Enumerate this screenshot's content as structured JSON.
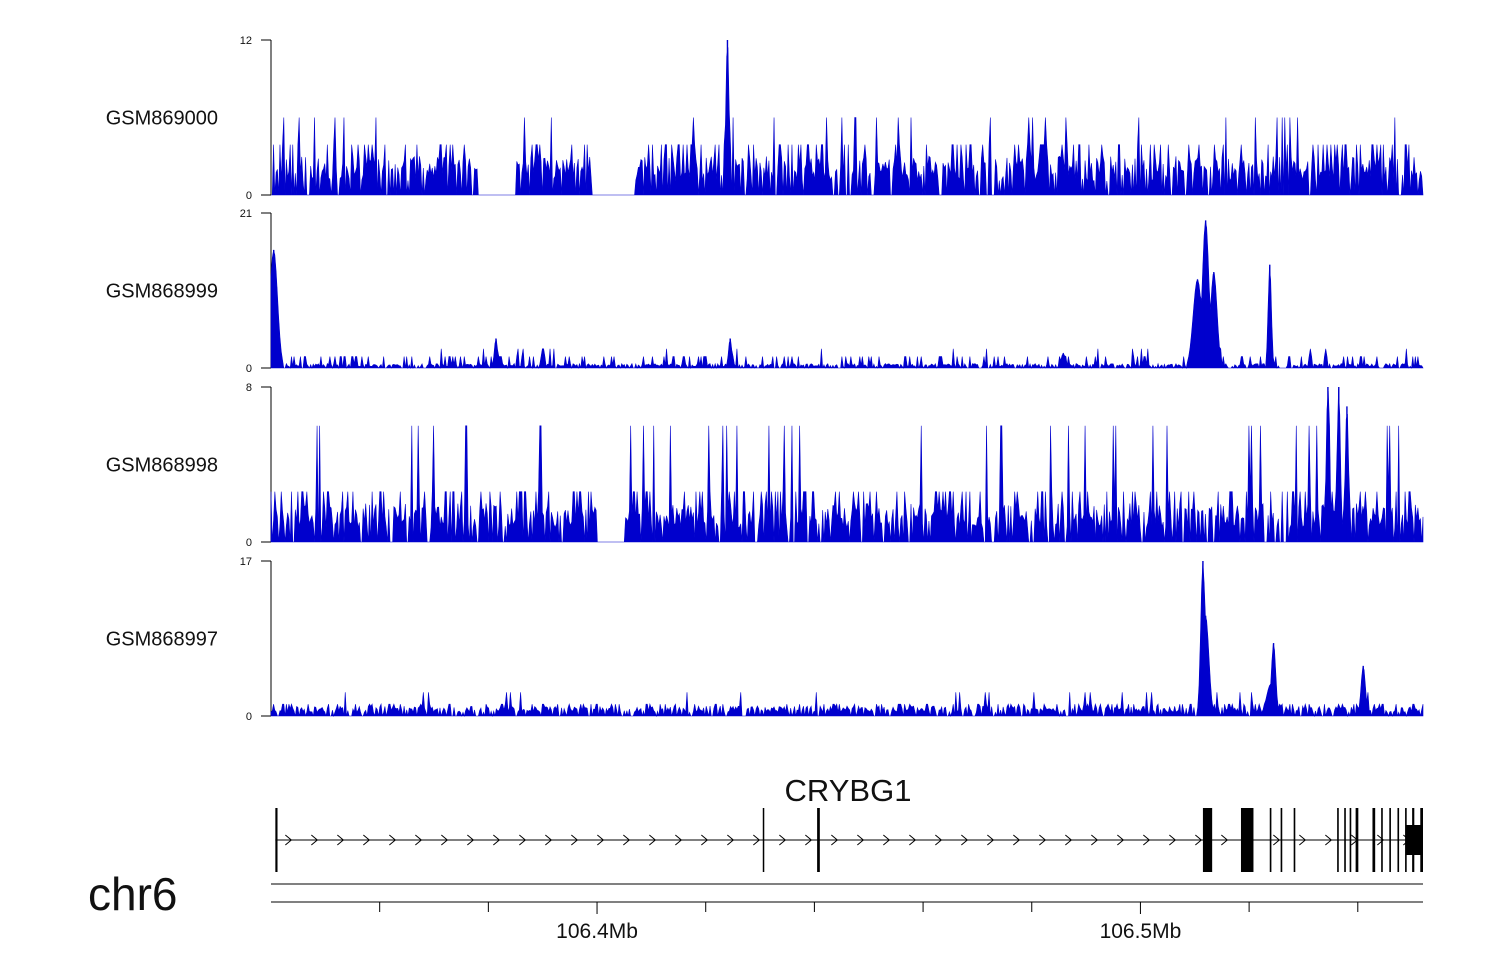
{
  "colors": {
    "coverage": "#0000cd",
    "axis": "#000000",
    "gene": "#000000"
  },
  "chart_data": {
    "type": "area",
    "chromosome": "chr6",
    "x_units": "Mb",
    "xlim": [
      106.34,
      106.552
    ],
    "x_ticks": [
      {
        "value": 106.4,
        "label": "106.4Mb"
      },
      {
        "value": 106.5,
        "label": "106.5Mb"
      }
    ],
    "x_minor_ticks": [
      106.36,
      106.38,
      106.42,
      106.44,
      106.46,
      106.48,
      106.52,
      106.54
    ],
    "tracks": [
      {
        "name": "GSM869000",
        "ylim": [
          0,
          12
        ],
        "ytick_labels": [
          "0",
          "12"
        ],
        "baseline": 3,
        "noise": 3,
        "spike_height": 6,
        "spike_count": 34,
        "seed": 11,
        "gaps": [
          [
            106.378,
            106.385
          ],
          [
            106.399,
            106.407
          ]
        ],
        "peaks": [
          {
            "x": 106.424,
            "y": 12,
            "w": 0.0003
          }
        ]
      },
      {
        "name": "GSM868999",
        "ylim": [
          0,
          21
        ],
        "ytick_labels": [
          "0",
          "21"
        ],
        "baseline": 0.6,
        "noise": 1.2,
        "spike_height": 2.6,
        "spike_count": 18,
        "seed": 23,
        "gaps": [],
        "peaks": [
          {
            "x": 106.3405,
            "y": 16,
            "w": 0.0007
          },
          {
            "x": 106.341,
            "y": 11,
            "w": 0.0004
          },
          {
            "x": 106.5105,
            "y": 12,
            "w": 0.0008
          },
          {
            "x": 106.512,
            "y": 20,
            "w": 0.0006
          },
          {
            "x": 106.5135,
            "y": 13,
            "w": 0.0006
          },
          {
            "x": 106.5238,
            "y": 14,
            "w": 0.0003
          },
          {
            "x": 106.4245,
            "y": 4,
            "w": 0.0003
          },
          {
            "x": 106.3814,
            "y": 4,
            "w": 0.0003
          },
          {
            "x": 106.4858,
            "y": 2,
            "w": 0.0004
          }
        ]
      },
      {
        "name": "GSM868998",
        "ylim": [
          0,
          8
        ],
        "ytick_labels": [
          "0",
          "8"
        ],
        "baseline": 2,
        "noise": 2,
        "spike_height": 6,
        "spike_count": 42,
        "seed": 37,
        "gaps": [
          [
            106.4,
            106.405
          ]
        ],
        "peaks": [
          {
            "x": 106.5345,
            "y": 8,
            "w": 0.0003
          },
          {
            "x": 106.5365,
            "y": 8,
            "w": 0.0003
          },
          {
            "x": 106.538,
            "y": 7,
            "w": 0.0003
          }
        ]
      },
      {
        "name": "GSM868997",
        "ylim": [
          0,
          17
        ],
        "ytick_labels": [
          "0",
          "17"
        ],
        "baseline": 1.1,
        "noise": 1.0,
        "spike_height": 2.6,
        "spike_count": 26,
        "seed": 53,
        "gaps": [],
        "peaks": [
          {
            "x": 106.5115,
            "y": 17,
            "w": 0.0004
          },
          {
            "x": 106.512,
            "y": 11,
            "w": 0.0006
          },
          {
            "x": 106.5245,
            "y": 8,
            "w": 0.0004
          },
          {
            "x": 106.524,
            "y": 3.5,
            "w": 0.0008
          },
          {
            "x": 106.541,
            "y": 5.5,
            "w": 0.0004
          }
        ]
      }
    ],
    "gene": {
      "name": "CRYBG1",
      "strand": "+",
      "start": 106.3408,
      "end": 106.552,
      "exons": [
        [
          106.3408,
          106.3412
        ],
        [
          106.4305,
          106.4307
        ],
        [
          106.4405,
          106.441
        ],
        [
          106.5115,
          106.5132
        ],
        [
          106.5185,
          106.5208
        ],
        [
          106.5238,
          106.5241
        ],
        [
          106.5258,
          106.5261
        ],
        [
          106.5282,
          106.5285
        ],
        [
          106.5362,
          106.5365
        ],
        [
          106.5375,
          106.5378
        ],
        [
          106.5385,
          106.5388
        ],
        [
          106.5396,
          106.5401
        ],
        [
          106.5427,
          106.5432
        ],
        [
          106.5443,
          106.5446
        ],
        [
          106.5458,
          106.5461
        ],
        [
          106.5473,
          106.5476
        ],
        [
          106.5487,
          106.549
        ],
        [
          106.55,
          106.5504
        ],
        [
          106.5515,
          106.552
        ]
      ],
      "thin_exons": [
        [
          106.5508,
          106.5515
        ]
      ],
      "terminal_exon": [
        106.5488,
        106.552
      ]
    }
  }
}
